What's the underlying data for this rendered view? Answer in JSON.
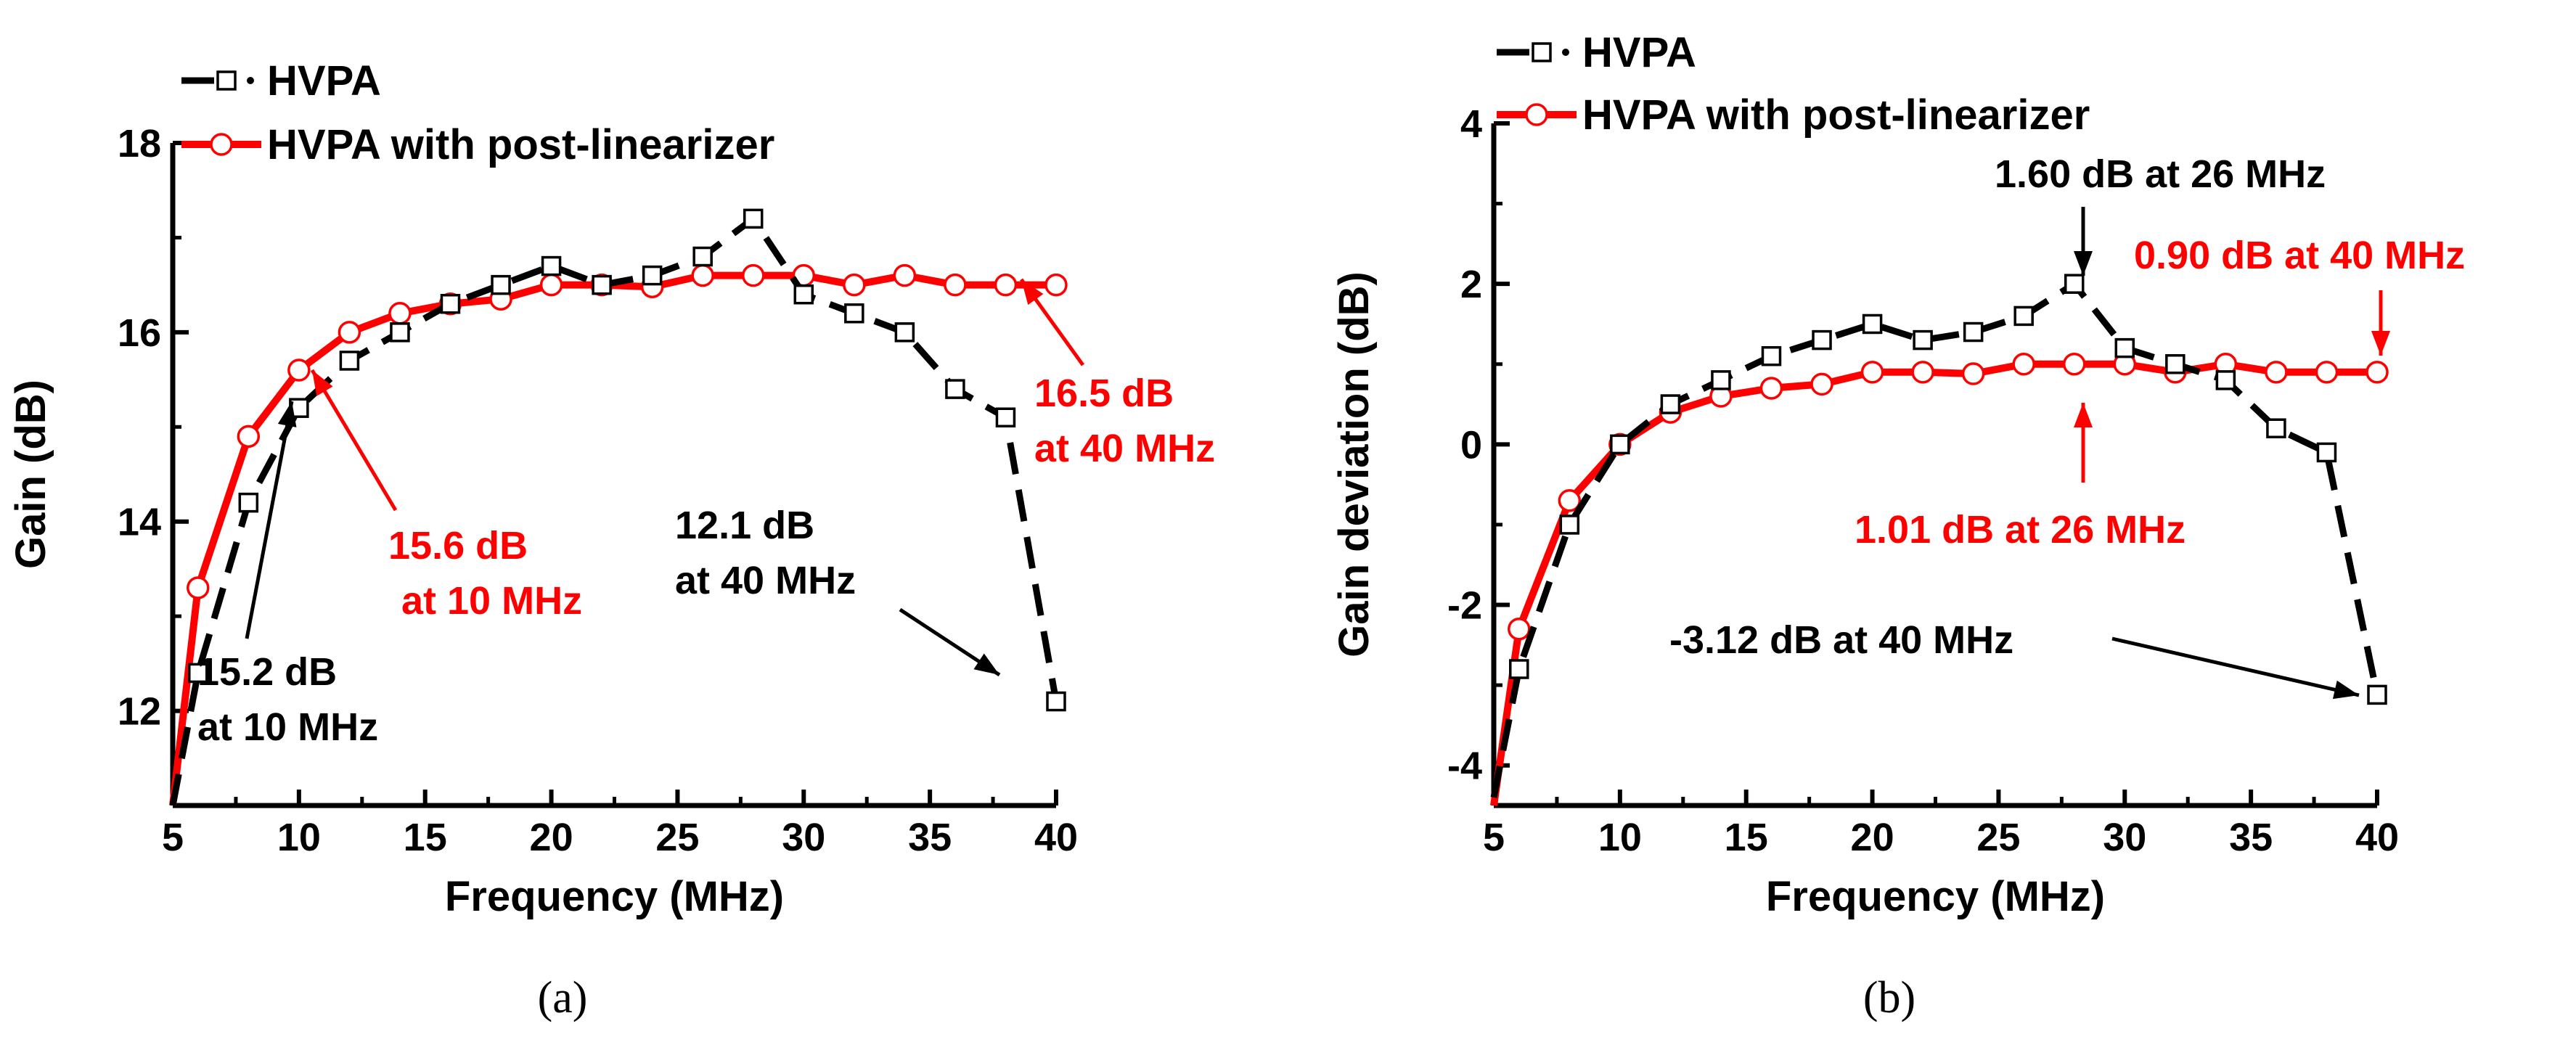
{
  "chart_data": [
    {
      "type": "line",
      "panel_label": "a",
      "xlabel": "Frequency (MHz)",
      "ylabel": "Gain (dB)",
      "xlim": [
        5,
        40
      ],
      "ylim": [
        11,
        18
      ],
      "xticks": [
        5,
        10,
        15,
        20,
        25,
        30,
        35,
        40
      ],
      "yticks": [
        12,
        14,
        16,
        18
      ],
      "legend": [
        "HVPA",
        "HVPA with post-linearizer"
      ],
      "series": [
        {
          "name": "HVPA",
          "color": "#000000",
          "style": "dash",
          "marker": "square",
          "x": [
            5,
            6,
            8,
            10,
            12,
            14,
            16,
            18,
            20,
            22,
            24,
            26,
            28,
            30,
            32,
            34,
            36,
            38,
            40
          ],
          "y": [
            11.0,
            12.4,
            14.2,
            15.2,
            15.7,
            16.0,
            16.3,
            16.5,
            16.7,
            16.5,
            16.6,
            16.8,
            17.2,
            16.4,
            16.2,
            16.0,
            15.4,
            15.1,
            12.1
          ]
        },
        {
          "name": "HVPA with post-linearizer",
          "color": "#ff0000",
          "style": "solid",
          "marker": "circle",
          "x": [
            5,
            6,
            8,
            10,
            12,
            14,
            16,
            18,
            20,
            22,
            24,
            26,
            28,
            30,
            32,
            34,
            36,
            38,
            40
          ],
          "y": [
            11.0,
            13.3,
            14.9,
            15.6,
            16.0,
            16.2,
            16.3,
            16.35,
            16.5,
            16.5,
            16.48,
            16.6,
            16.6,
            16.6,
            16.5,
            16.6,
            16.5,
            16.5,
            16.5
          ]
        }
      ],
      "annotations": [
        {
          "lines": [
            "15.2 dB",
            "at 10 MHz"
          ],
          "color": "#000000",
          "point": [
            10,
            15.2
          ]
        },
        {
          "lines": [
            "15.6 dB",
            "at 10 MHz"
          ],
          "color": "#ff0000",
          "point": [
            10,
            15.6
          ]
        },
        {
          "lines": [
            "12.1 dB",
            "at 40 MHz"
          ],
          "color": "#000000",
          "point": [
            40,
            12.1
          ]
        },
        {
          "lines": [
            "16.5 dB",
            "at 40 MHz"
          ],
          "color": "#ff0000",
          "point": [
            40,
            16.5
          ]
        }
      ]
    },
    {
      "type": "line",
      "panel_label": "b",
      "xlabel": "Frequency (MHz)",
      "ylabel": "Gain deviation (dB)",
      "xlim": [
        5,
        40
      ],
      "ylim": [
        -4.5,
        4
      ],
      "xticks": [
        5,
        10,
        15,
        20,
        25,
        30,
        35,
        40
      ],
      "yticks": [
        -4,
        -2,
        0,
        2,
        4
      ],
      "legend": [
        "HVPA",
        "HVPA with post-linearizer"
      ],
      "series": [
        {
          "name": "HVPA",
          "color": "#000000",
          "style": "dash",
          "marker": "square",
          "x": [
            5,
            6,
            8,
            10,
            12,
            14,
            16,
            18,
            20,
            22,
            24,
            26,
            28,
            30,
            32,
            34,
            36,
            38,
            40
          ],
          "y": [
            -4.4,
            -2.8,
            -1.0,
            0.0,
            0.5,
            0.8,
            1.1,
            1.3,
            1.5,
            1.3,
            1.4,
            1.6,
            2.0,
            1.2,
            1.0,
            0.8,
            0.2,
            -0.1,
            -3.12
          ]
        },
        {
          "name": "HVPA with post-linearizer",
          "color": "#ff0000",
          "style": "solid",
          "marker": "circle",
          "x": [
            5,
            6,
            8,
            10,
            12,
            14,
            16,
            18,
            20,
            22,
            24,
            26,
            28,
            30,
            32,
            34,
            36,
            38,
            40
          ],
          "y": [
            -4.5,
            -2.3,
            -0.7,
            0.0,
            0.4,
            0.6,
            0.7,
            0.75,
            0.9,
            0.9,
            0.88,
            1.0,
            1.0,
            1.0,
            0.9,
            1.0,
            0.9,
            0.9,
            0.9
          ]
        }
      ],
      "annotations": [
        {
          "lines": [
            "1.60 dB at 26 MHz"
          ],
          "color": "#000000",
          "point": [
            28,
            2.0
          ]
        },
        {
          "lines": [
            "0.90 dB at 40 MHz"
          ],
          "color": "#ff0000",
          "point": [
            40,
            0.9
          ]
        },
        {
          "lines": [
            "1.01 dB at 26 MHz"
          ],
          "color": "#ff0000",
          "point": [
            28,
            1.0
          ]
        },
        {
          "lines": [
            "-3.12 dB at 40 MHz"
          ],
          "color": "#000000",
          "point": [
            40,
            -3.12
          ]
        }
      ]
    }
  ],
  "captions": [
    "(a)",
    "(b)"
  ]
}
